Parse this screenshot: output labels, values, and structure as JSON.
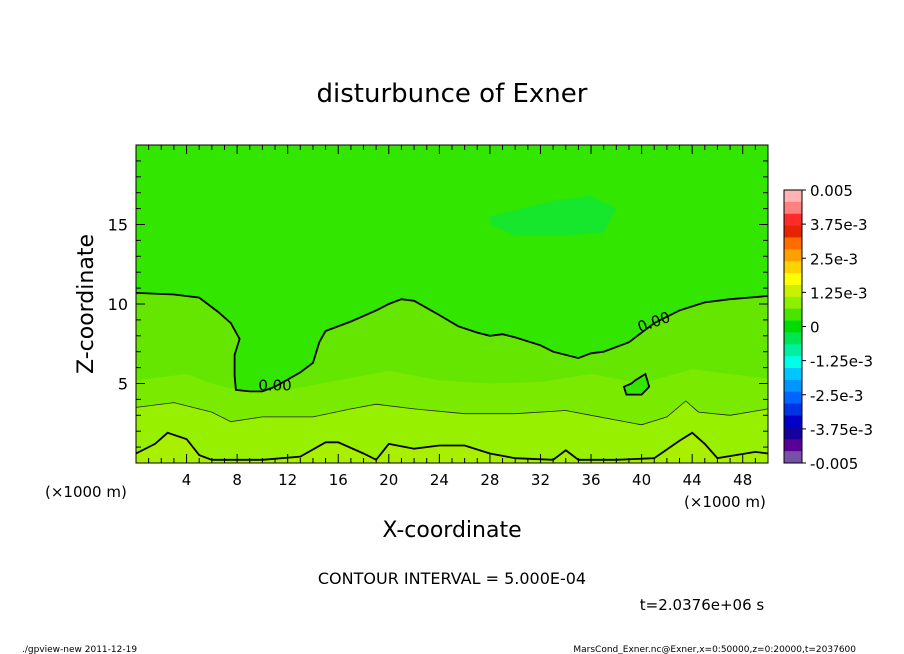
{
  "chart_data": {
    "type": "contour",
    "title": "disturbunce of Exner",
    "xlabel": "X-coordinate",
    "ylabel": "Z-coordinate",
    "x_unit_label": "(×1000 m)",
    "x_unit_label_right": "(×1000 m)",
    "xlim": [
      0,
      50
    ],
    "ylim": [
      0,
      20
    ],
    "x_ticks": [
      4,
      8,
      12,
      16,
      20,
      24,
      28,
      32,
      36,
      40,
      44,
      48
    ],
    "y_ticks": [
      5,
      10,
      15
    ],
    "contour_interval_text": "CONTOUR INTERVAL = 5.000E-04",
    "contour_labels": [
      {
        "text": "0.00",
        "x": 11.0,
        "z": 4.8
      },
      {
        "text": "0.00",
        "x": 41.0,
        "z": 8.8
      }
    ],
    "zero_contour": [
      [
        0,
        10.7
      ],
      [
        3,
        10.6
      ],
      [
        5,
        10.4
      ],
      [
        6.5,
        9.5
      ],
      [
        7.5,
        8.8
      ],
      [
        8.2,
        7.8
      ],
      [
        7.8,
        6.8
      ],
      [
        7.8,
        5.5
      ],
      [
        7.9,
        4.6
      ],
      [
        9,
        4.5
      ],
      [
        10,
        4.5
      ],
      [
        11,
        4.8
      ],
      [
        13,
        5.7
      ],
      [
        14,
        6.3
      ],
      [
        14.5,
        7.6
      ],
      [
        15,
        8.3
      ],
      [
        17,
        8.9
      ],
      [
        19,
        9.6
      ],
      [
        20,
        10.0
      ],
      [
        21,
        10.3
      ],
      [
        22,
        10.2
      ],
      [
        24,
        9.3
      ],
      [
        25.5,
        8.6
      ],
      [
        27,
        8.2
      ],
      [
        28,
        8.0
      ],
      [
        29,
        8.1
      ],
      [
        30,
        7.9
      ],
      [
        32,
        7.4
      ],
      [
        33,
        7.0
      ],
      [
        35,
        6.6
      ],
      [
        36,
        6.9
      ],
      [
        37,
        7.0
      ],
      [
        39,
        7.6
      ],
      [
        40,
        8.2
      ],
      [
        41,
        8.8
      ],
      [
        43,
        9.6
      ],
      [
        45,
        10.1
      ],
      [
        47,
        10.3
      ],
      [
        48.5,
        10.4
      ],
      [
        50,
        10.5
      ]
    ],
    "closed_contour": [
      [
        39.5,
        5.2
      ],
      [
        40.3,
        5.6
      ],
      [
        40.6,
        4.8
      ],
      [
        40.0,
        4.3
      ],
      [
        38.8,
        4.3
      ],
      [
        38.6,
        4.8
      ],
      [
        39.2,
        5.0
      ],
      [
        39.5,
        5.2
      ]
    ],
    "thin_contour": [
      [
        0,
        3.5
      ],
      [
        3,
        3.8
      ],
      [
        6,
        3.2
      ],
      [
        7.5,
        2.6
      ],
      [
        10,
        2.9
      ],
      [
        14,
        2.9
      ],
      [
        17,
        3.4
      ],
      [
        19,
        3.7
      ],
      [
        22,
        3.4
      ],
      [
        26,
        3.1
      ],
      [
        30,
        3.1
      ],
      [
        34,
        3.3
      ],
      [
        36,
        3.0
      ],
      [
        40,
        2.4
      ],
      [
        42,
        2.9
      ],
      [
        43.5,
        3.9
      ],
      [
        44.5,
        3.2
      ],
      [
        47,
        3.0
      ],
      [
        50,
        3.4
      ]
    ],
    "bottom_contour": [
      [
        0,
        0.6
      ],
      [
        1.5,
        1.2
      ],
      [
        2.5,
        1.9
      ],
      [
        4,
        1.5
      ],
      [
        5,
        0.5
      ],
      [
        6,
        0.2
      ],
      [
        10,
        0.2
      ],
      [
        13,
        0.4
      ],
      [
        15,
        1.3
      ],
      [
        16,
        1.3
      ],
      [
        18,
        0.6
      ],
      [
        19,
        0.2
      ],
      [
        20,
        1.2
      ],
      [
        22,
        0.9
      ],
      [
        24,
        1.1
      ],
      [
        26,
        1.1
      ],
      [
        28,
        0.6
      ],
      [
        30,
        0.3
      ],
      [
        33,
        0.2
      ],
      [
        34,
        0.8
      ],
      [
        35,
        0.2
      ],
      [
        38,
        0.2
      ],
      [
        41,
        0.3
      ],
      [
        43,
        1.4
      ],
      [
        44,
        1.9
      ],
      [
        45,
        1.2
      ],
      [
        46,
        0.3
      ],
      [
        49,
        0.7
      ],
      [
        50,
        0.6
      ]
    ],
    "colorbar": {
      "labels": [
        "0.005",
        "3.75e-3",
        "2.5e-3",
        "1.25e-3",
        "0",
        "-1.25e-3",
        "-2.5e-3",
        "-3.75e-3",
        "-0.005"
      ],
      "colors": [
        "#ffb3b3",
        "#ff8080",
        "#ff2a2a",
        "#e62400",
        "#ff6d00",
        "#ffa000",
        "#ffd200",
        "#ffff00",
        "#c8f000",
        "#8cf000",
        "#46e600",
        "#00dc00",
        "#00e650",
        "#00f0a0",
        "#00ffe6",
        "#00c8ff",
        "#0096ff",
        "#0064ff",
        "#0032e6",
        "#0000c8",
        "#14009b",
        "#5a0096",
        "#7850aa"
      ]
    },
    "regions": [
      {
        "level": "0 to 5e-4",
        "color": "#32e600"
      },
      {
        "level": "-5e-4 to 0",
        "color": "#00e650"
      },
      {
        "level": "5e-4 to 1e-3",
        "color": "#64e600"
      },
      {
        "level": "1e-3 to 1.5e-3",
        "color": "#96f000"
      },
      {
        "level": ">1.5e-3",
        "color": "#a8f000"
      }
    ]
  },
  "time_text": "t=2.0376e+06 s",
  "footer_left": "./gpview-new   2011-12-19",
  "footer_right": "MarsCond_Exner.nc@Exner,x=0:50000,z=0:20000,t=2037600"
}
